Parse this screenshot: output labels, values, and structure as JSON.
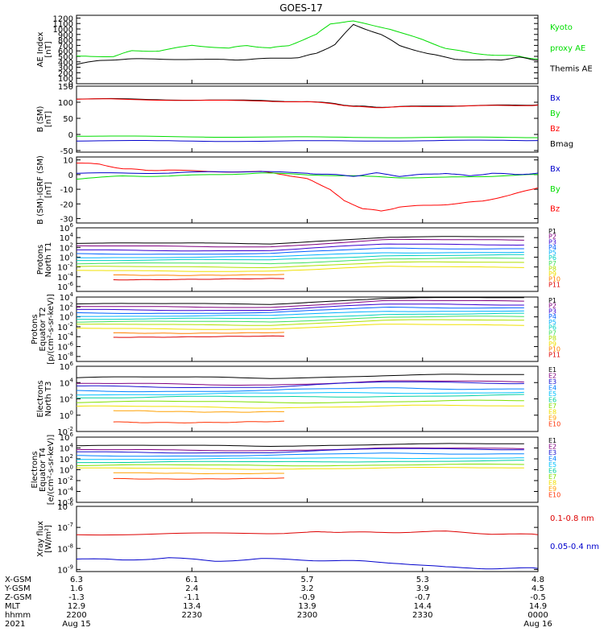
{
  "title": "GOES-17",
  "colors": {
    "black": "#000000",
    "red": "#ff0000",
    "green": "#00dd00",
    "blue": "#0000cc",
    "p_scale": [
      "#000000",
      "#800080",
      "#3a00d0",
      "#0060ff",
      "#00b0ff",
      "#00d0c0",
      "#40e060",
      "#b0e000",
      "#f0e000",
      "#ff8000",
      "#dd0000"
    ],
    "e_scale": [
      "#000000",
      "#800080",
      "#1a10d0",
      "#0080ff",
      "#00c0ff",
      "#00d0a0",
      "#80e000",
      "#f0e000",
      "#ffa000",
      "#ff3000",
      "#dd0000"
    ]
  },
  "chart_data": [
    {
      "type": "line",
      "id": "ae",
      "ylabel_lines": [
        "AE Index",
        "[nT]"
      ],
      "yticks": [
        0,
        100,
        200,
        300,
        400,
        500,
        600,
        700,
        800,
        900,
        1000,
        1100,
        1200
      ],
      "ylim": [
        0,
        1250
      ],
      "legend": [
        {
          "text": "Kyoto",
          "color": "#00dd00"
        },
        {
          "text": "proxy AE",
          "color": "#00dd00"
        },
        {
          "text": "Themis AE",
          "color": "#000000"
        }
      ],
      "series": [
        {
          "name": "Kyoto proxy AE",
          "color": "#00dd00",
          "x": [
            0,
            0.08,
            0.12,
            0.18,
            0.25,
            0.33,
            0.37,
            0.42,
            0.46,
            0.52,
            0.55,
            0.6,
            0.68,
            0.75,
            0.8,
            0.86,
            0.92,
            0.96,
            1
          ],
          "y": [
            500,
            500,
            600,
            600,
            700,
            650,
            700,
            650,
            700,
            900,
            1100,
            1140,
            1000,
            800,
            650,
            550,
            520,
            500,
            450
          ]
        },
        {
          "name": "Themis AE",
          "color": "#000000",
          "x": [
            0,
            0.05,
            0.12,
            0.2,
            0.3,
            0.35,
            0.42,
            0.48,
            0.52,
            0.56,
            0.6,
            0.66,
            0.7,
            0.76,
            0.82,
            0.88,
            0.92,
            0.96,
            1
          ],
          "y": [
            350,
            430,
            450,
            450,
            440,
            440,
            460,
            480,
            550,
            720,
            1080,
            900,
            700,
            550,
            450,
            430,
            440,
            480,
            430
          ]
        }
      ]
    },
    {
      "type": "line",
      "id": "bsm",
      "ylabel_lines": [
        "B (SM)",
        "[nT]"
      ],
      "yticks": [
        -50,
        0,
        50,
        100,
        150
      ],
      "ylim": [
        -55,
        150
      ],
      "legend": [
        {
          "text": "Bx",
          "color": "#0000cc"
        },
        {
          "text": "By",
          "color": "#00dd00"
        },
        {
          "text": "Bz",
          "color": "#ff0000"
        },
        {
          "text": "Bmag",
          "color": "#000000"
        }
      ],
      "series": [
        {
          "name": "Bmag",
          "color": "#000000",
          "x": [
            0,
            0.1,
            0.25,
            0.4,
            0.5,
            0.56,
            0.6,
            0.65,
            0.7,
            0.8,
            0.9,
            1
          ],
          "y": [
            111,
            110,
            107,
            105,
            102,
            96,
            88,
            85,
            86,
            89,
            90,
            92
          ]
        },
        {
          "name": "Bz",
          "color": "#ff0000",
          "x": [
            0,
            0.1,
            0.25,
            0.4,
            0.5,
            0.56,
            0.6,
            0.65,
            0.7,
            0.8,
            0.9,
            1
          ],
          "y": [
            110,
            109,
            106,
            104,
            101,
            95,
            86,
            84,
            85,
            88,
            89,
            91
          ]
        },
        {
          "name": "By",
          "color": "#00dd00",
          "x": [
            0,
            0.2,
            0.4,
            0.6,
            0.8,
            1
          ],
          "y": [
            -5,
            -7,
            -8,
            -9,
            -9,
            -10
          ]
        },
        {
          "name": "Bx",
          "color": "#0000cc",
          "x": [
            0,
            0.2,
            0.4,
            0.6,
            0.8,
            1
          ],
          "y": [
            -20,
            -20,
            -21,
            -20,
            -19,
            -19
          ]
        }
      ]
    },
    {
      "type": "line",
      "id": "bigrf",
      "ylabel_lines": [
        "B (SM)-IGRF (SM)",
        "[nT]"
      ],
      "yticks": [
        -30,
        -20,
        -10,
        0,
        10
      ],
      "ylim": [
        -33,
        12
      ],
      "legend": [
        {
          "text": "Bx",
          "color": "#0000cc"
        },
        {
          "text": "By",
          "color": "#00dd00"
        },
        {
          "text": "Bz",
          "color": "#ff0000"
        }
      ],
      "series": [
        {
          "name": "Bz",
          "color": "#ff0000",
          "x": [
            0,
            0.05,
            0.1,
            0.15,
            0.2,
            0.3,
            0.4,
            0.45,
            0.5,
            0.55,
            0.58,
            0.62,
            0.66,
            0.7,
            0.76,
            0.82,
            0.88,
            0.94,
            1
          ],
          "y": [
            8,
            7,
            4,
            3,
            3,
            2,
            2,
            0,
            -3,
            -10,
            -18,
            -23,
            -25,
            -22,
            -21,
            -20,
            -18,
            -14,
            -9
          ]
        },
        {
          "name": "By",
          "color": "#00dd00",
          "x": [
            0,
            0.1,
            0.2,
            0.3,
            0.4,
            0.5,
            0.6,
            0.7,
            0.8,
            0.9,
            1
          ],
          "y": [
            -3,
            -1,
            -1,
            0,
            1,
            0,
            -1,
            -2,
            -2,
            -1,
            0
          ]
        },
        {
          "name": "Bx",
          "color": "#0000cc",
          "x": [
            0,
            0.1,
            0.2,
            0.3,
            0.4,
            0.5,
            0.55,
            0.6,
            0.65,
            0.7,
            0.75,
            0.8,
            0.85,
            0.9,
            0.95,
            1
          ],
          "y": [
            1,
            1,
            1,
            2,
            2,
            1,
            0,
            -1,
            1,
            -1,
            0,
            1,
            -1,
            1,
            0,
            1
          ]
        }
      ]
    },
    {
      "type": "line",
      "id": "pn",
      "log": true,
      "ylabel_lines": [
        "Protons",
        "North T1"
      ],
      "yticks_exp": [
        -6,
        -4,
        -2,
        0,
        2,
        4,
        6
      ],
      "ylim_exp": [
        -7,
        6
      ],
      "legend": [
        "P1",
        "P2",
        "P3",
        "P4",
        "P5",
        "P6",
        "P7",
        "P8",
        "P9",
        "P10",
        "P11"
      ],
      "levels": [
        2.8,
        2.2,
        1.4,
        0.7,
        0.0,
        -0.6,
        -1.3,
        -2.0,
        -2.8,
        -3.6,
        -4.5
      ],
      "bump": [
        1.3,
        1.3,
        1.2,
        1.1,
        1.0,
        1.0,
        1.0,
        0.9,
        0.8,
        0,
        0
      ]
    },
    {
      "type": "line",
      "id": "pe",
      "log": true,
      "ylabel_lines": [
        "Protons",
        "Equator T2",
        "[p/(cm²-s-sr-keV)]"
      ],
      "yticks_exp": [
        -8,
        -6,
        -4,
        -2,
        0,
        2,
        4
      ],
      "ylim_exp": [
        -9,
        4
      ],
      "legend": [
        "P1",
        "P2",
        "P3",
        "P4",
        "P5",
        "P6",
        "P7",
        "P8",
        "P9",
        "P10",
        "P11"
      ],
      "levels": [
        2.6,
        2.0,
        1.4,
        0.8,
        0.2,
        -0.4,
        -1.0,
        -1.6,
        -2.4,
        -3.2,
        -4.0
      ],
      "bump": [
        1.2,
        1.2,
        1.1,
        1.1,
        1.0,
        1.0,
        1.0,
        0.9,
        0.8,
        0,
        0
      ]
    },
    {
      "type": "line",
      "id": "en",
      "log": true,
      "ylabel_lines": [
        "Electrons",
        "North T3"
      ],
      "yticks_exp": [
        -2,
        0,
        2,
        4,
        6
      ],
      "ylim_exp": [
        -2,
        6
      ],
      "legend": [
        "E1",
        "E2",
        "E3",
        "E4",
        "E5",
        "E6",
        "E7",
        "E8",
        "E9",
        "E10"
      ],
      "levels": [
        4.6,
        3.8,
        3.5,
        3.0,
        2.6,
        2.2,
        1.6,
        1.0,
        0.5,
        -0.8
      ],
      "bump": [
        0.3,
        0.3,
        0.5,
        0.3,
        0.2,
        0.2,
        0.1,
        0.1,
        0.1,
        0
      ]
    },
    {
      "type": "line",
      "id": "ee",
      "log": true,
      "ylabel_lines": [
        "Electrons",
        "Equator T4",
        "[e/(cm²-s-sr-keV)]"
      ],
      "yticks_exp": [
        -6,
        -4,
        -2,
        0,
        2,
        4,
        6
      ],
      "ylim_exp": [
        -6,
        6
      ],
      "legend": [
        "E1",
        "E2",
        "E3",
        "E4",
        "E5",
        "E6",
        "E7",
        "E8",
        "E9",
        "E10"
      ],
      "levels": [
        4.4,
        3.6,
        3.2,
        2.6,
        2.0,
        1.4,
        0.8,
        0.2,
        -0.6,
        -1.6
      ],
      "bump": [
        0.3,
        0.3,
        0.6,
        0.4,
        0.2,
        0.2,
        0.1,
        0.1,
        0.1,
        0
      ]
    },
    {
      "type": "line",
      "id": "xray",
      "log": true,
      "ylabel_lines": [
        "Xray flux",
        "[W/m²]"
      ],
      "yticks_exp": [
        -9,
        -8,
        -7,
        -6
      ],
      "ylim_exp": [
        -9.1,
        -6
      ],
      "legend": [
        {
          "text": "0.1-0.8 nm",
          "color": "#dd0000"
        },
        {
          "text": "0.05-0.4 nm",
          "color": "#0000cc"
        }
      ],
      "series": [
        {
          "name": "0.1-0.8 nm",
          "color": "#dd0000",
          "x": [
            0,
            0.2,
            0.4,
            0.5,
            0.55,
            0.6,
            0.7,
            0.8,
            0.9,
            1
          ],
          "y": [
            -7.35,
            -7.3,
            -7.28,
            -7.25,
            -7.2,
            -7.25,
            -7.22,
            -7.2,
            -7.3,
            -7.35
          ]
        },
        {
          "name": "0.05-0.4 nm",
          "color": "#0000cc",
          "x": [
            0,
            0.1,
            0.2,
            0.3,
            0.4,
            0.5,
            0.6,
            0.7,
            0.8,
            0.9,
            1
          ],
          "y": [
            -8.5,
            -8.55,
            -8.45,
            -8.6,
            -8.5,
            -8.55,
            -8.6,
            -8.7,
            -8.9,
            -8.95,
            -8.95
          ]
        }
      ]
    }
  ],
  "xaxis": {
    "row_labels": [
      "X-GSM",
      "Y-GSM",
      "Z-GSM",
      "MLT",
      "hhmm",
      "2021"
    ],
    "columns": [
      {
        "x": 0,
        "vals": [
          "6.3",
          "1.6",
          "-1.3",
          "12.9",
          "2200",
          "Aug 15"
        ]
      },
      {
        "x": 0.25,
        "vals": [
          "6.1",
          "2.4",
          "-1.1",
          "13.4",
          "2230",
          ""
        ]
      },
      {
        "x": 0.5,
        "vals": [
          "5.7",
          "3.2",
          "-0.9",
          "13.9",
          "2300",
          ""
        ]
      },
      {
        "x": 0.75,
        "vals": [
          "5.3",
          "3.9",
          "-0.7",
          "14.4",
          "2330",
          ""
        ]
      },
      {
        "x": 1,
        "vals": [
          "4.8",
          "4.5",
          "-0.5",
          "14.9",
          "0000",
          "Aug 16"
        ]
      }
    ]
  }
}
